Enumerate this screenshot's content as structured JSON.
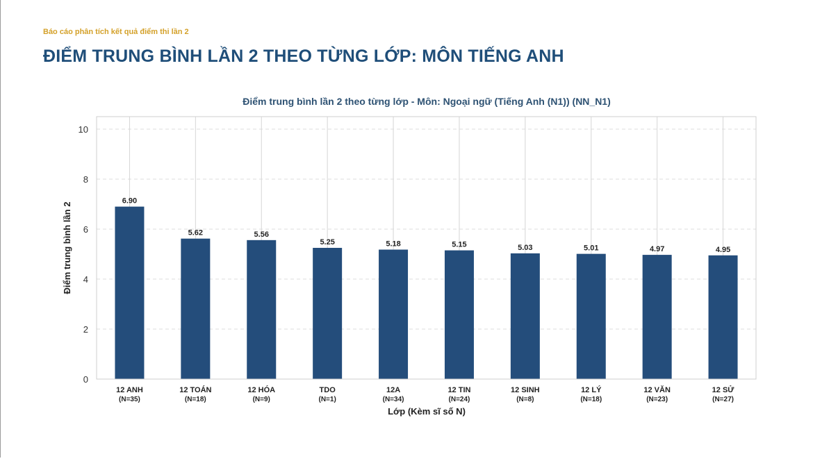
{
  "report": {
    "subtitle": "Báo cáo phân tích kết quả điểm thi lần 2",
    "title": "ĐIỂM TRUNG BÌNH LẦN 2 THEO TỪNG LỚP: MÔN TIẾNG ANH"
  },
  "colors": {
    "bar": "#244d7b",
    "title": "#1f4e79",
    "subtitle": "#d4a12a",
    "chart_title": "#2e5273"
  },
  "chart_data": {
    "type": "bar",
    "title": "Điểm trung bình lần 2 theo từng lớp - Môn: Ngoại ngữ (Tiếng Anh (N1)) (NN_N1)",
    "xlabel": "Lớp (Kèm sĩ số N)",
    "ylabel": "Điểm trung bình lần 2",
    "ylim": [
      0,
      10.5
    ],
    "yticks": [
      "0",
      "2",
      "4",
      "6",
      "8",
      "10"
    ],
    "grid": true,
    "categories": [
      {
        "name": "12 ANH",
        "n": "(N=35)"
      },
      {
        "name": "12 TOÁN",
        "n": "(N=18)"
      },
      {
        "name": "12 HÓA",
        "n": "(N=9)"
      },
      {
        "name": "TDO",
        "n": "(N=1)"
      },
      {
        "name": "12A",
        "n": "(N=34)"
      },
      {
        "name": "12 TIN",
        "n": "(N=24)"
      },
      {
        "name": "12 SINH",
        "n": "(N=8)"
      },
      {
        "name": "12 LÝ",
        "n": "(N=18)"
      },
      {
        "name": "12 VĂN",
        "n": "(N=23)"
      },
      {
        "name": "12 SỬ",
        "n": "(N=27)"
      }
    ],
    "values": [
      6.9,
      5.62,
      5.56,
      5.25,
      5.18,
      5.15,
      5.03,
      5.01,
      4.97,
      4.95
    ],
    "value_labels": [
      "6.90",
      "5.62",
      "5.56",
      "5.25",
      "5.18",
      "5.15",
      "5.03",
      "5.01",
      "4.97",
      "4.95"
    ]
  }
}
